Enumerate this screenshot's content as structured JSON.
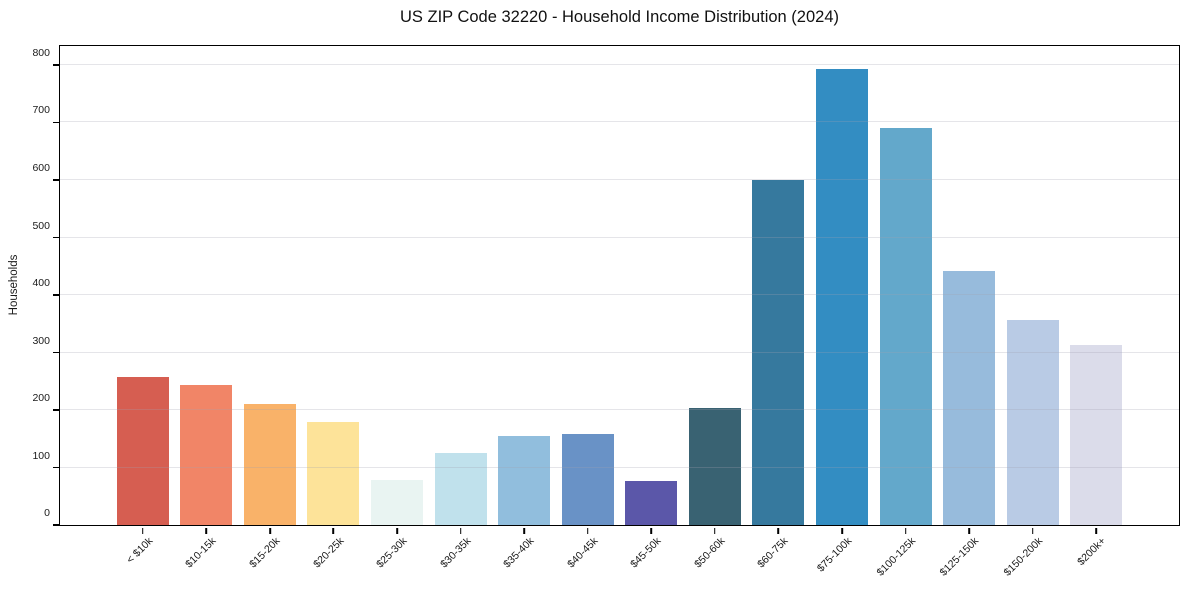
{
  "chart_data": {
    "type": "bar",
    "title": "US ZIP Code 32220 - Household Income Distribution (2024)",
    "xlabel": "",
    "ylabel": "Households",
    "categories": [
      "< $10k",
      "$10-15k",
      "$15-20k",
      "$20-25k",
      "$25-30k",
      "$30-35k",
      "$35-40k",
      "$40-45k",
      "$45-50k",
      "$50-60k",
      "$60-75k",
      "$75-100k",
      "$100-125k",
      "$125-150k",
      "$150-200k",
      "$200k+"
    ],
    "values": [
      257,
      244,
      210,
      179,
      78,
      125,
      155,
      158,
      77,
      203,
      600,
      793,
      690,
      442,
      356,
      313
    ],
    "bar_colors": [
      "#d65e51",
      "#f18567",
      "#f9b269",
      "#fde399",
      "#e9f4f2",
      "#c0e1ec",
      "#91bedd",
      "#6992c6",
      "#5b57a9",
      "#396272",
      "#36799e",
      "#338dc2",
      "#63a8cb",
      "#97bbdc",
      "#b9cbe5",
      "#dbdcea"
    ],
    "yticks": [
      0,
      100,
      200,
      300,
      400,
      500,
      600,
      700,
      800
    ],
    "ylim": [
      0,
      833
    ],
    "grid": "horizontal",
    "legend": "none",
    "background_color": "#ffffff",
    "text_color": "#1a1a1a",
    "spine_color": "#000000",
    "gridline_color": "#e8e8ee"
  }
}
